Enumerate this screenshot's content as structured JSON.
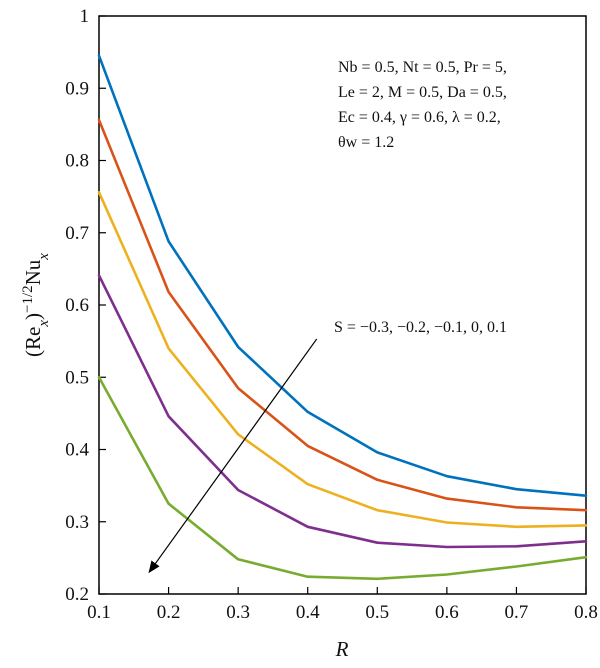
{
  "chart_data": {
    "type": "line",
    "x": [
      0.1,
      0.2,
      0.3,
      0.4,
      0.5,
      0.6,
      0.7,
      0.8
    ],
    "series": [
      {
        "label": "S = -0.3",
        "color": "#0072BD",
        "values": [
          0.945,
          0.688,
          0.542,
          0.452,
          0.396,
          0.363,
          0.345,
          0.336
        ]
      },
      {
        "label": "S = -0.2",
        "color": "#D95319",
        "values": [
          0.856,
          0.618,
          0.485,
          0.405,
          0.358,
          0.332,
          0.32,
          0.316
        ]
      },
      {
        "label": "S = -0.1",
        "color": "#EDB120",
        "values": [
          0.756,
          0.54,
          0.421,
          0.352,
          0.316,
          0.299,
          0.293,
          0.295
        ]
      },
      {
        "label": "S = 0",
        "color": "#7E2F8E",
        "values": [
          0.641,
          0.446,
          0.344,
          0.293,
          0.271,
          0.265,
          0.266,
          0.273
        ]
      },
      {
        "label": "S = 0.1",
        "color": "#77AC30",
        "values": [
          0.5,
          0.325,
          0.248,
          0.224,
          0.221,
          0.227,
          0.238,
          0.251
        ]
      }
    ],
    "xlim": [
      0.1,
      0.8
    ],
    "ylim": [
      0.2,
      1.0
    ],
    "xticks": [
      "0.1",
      "0.2",
      "0.3",
      "0.4",
      "0.5",
      "0.6",
      "0.7",
      "0.8"
    ],
    "yticks": [
      "0.2",
      "0.3",
      "0.4",
      "0.5",
      "0.6",
      "0.7",
      "0.8",
      "0.9",
      "1"
    ],
    "xlabel": "R",
    "ylabel": {
      "base": "(Re",
      "sub1": "x",
      "close": ")",
      "sup": "−1/2",
      "nu": "Nu",
      "sub2": "x"
    },
    "params": [
      "Nb = 0.5, Nt = 0.5, Pr = 5,",
      "Le = 2, M = 0.5, Da = 0.5,",
      "Ec = 0.4, γ = 0.6, λ = 0.2,",
      "θw = 1.2"
    ],
    "arrow_label": "S = −0.3, −0.2, −0.1, 0, 0.1",
    "arrow": {
      "from": {
        "x": 0.413,
        "y": 0.553
      },
      "to": {
        "x": 0.172,
        "y": 0.23
      }
    },
    "grid": false,
    "axis_color": "#000000"
  }
}
